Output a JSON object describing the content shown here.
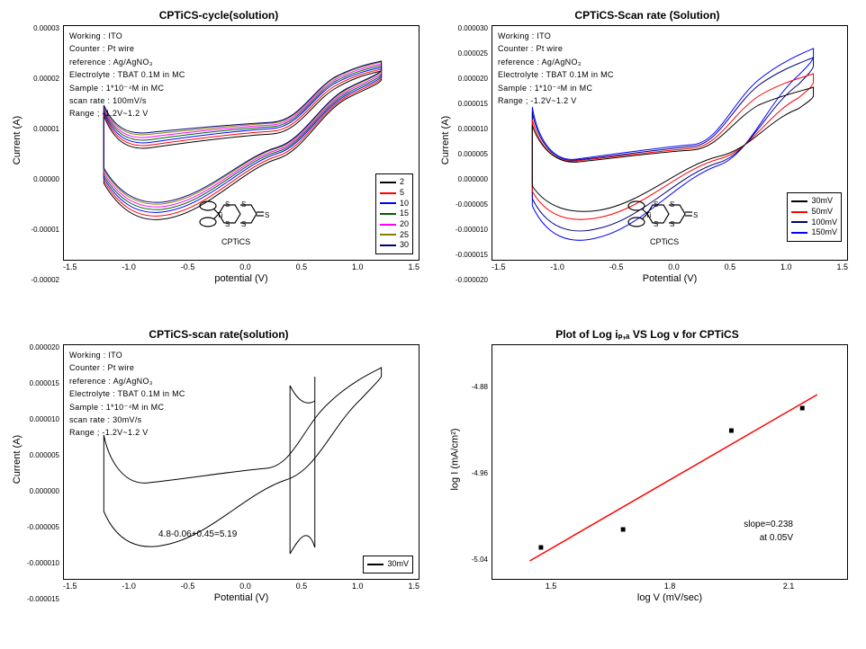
{
  "panelA": {
    "title": "CPTiCS-cycle(solution)",
    "type": "line",
    "ylabel": "Current (A)",
    "xlabel": "potential (V)",
    "xticks": [
      "-1.5",
      "-1.0",
      "-0.5",
      "0.0",
      "0.5",
      "1.0",
      "1.5"
    ],
    "yticks": [
      "-0.00002",
      "-0.00001",
      "0.00000",
      "0.00001",
      "0.00002",
      "0.00003"
    ],
    "info": [
      "Working : ITO",
      "Counter : Pt wire",
      "reference : Ag/AgNO₃",
      "Electrolyte : TBAT 0.1M in MC",
      "Sample : 1*10⁻⁴M in MC",
      "scan rate : 100mV/s",
      "Range ; -1.2V~1.2 V"
    ],
    "legend": [
      {
        "label": "2",
        "color": "#000000"
      },
      {
        "label": "5",
        "color": "#ff0000"
      },
      {
        "label": "10",
        "color": "#0000ff"
      },
      {
        "label": "15",
        "color": "#006000"
      },
      {
        "label": "20",
        "color": "#ff00ff"
      },
      {
        "label": "25",
        "color": "#808000"
      },
      {
        "label": "30",
        "color": "#000080"
      }
    ],
    "mol_label": "CPTiCS",
    "background_color": "#ffffff",
    "line_width": 1,
    "xlim": [
      -1.5,
      1.5
    ],
    "ylim": [
      -2e-05,
      3e-05
    ]
  },
  "panelB": {
    "title": "CPTiCS-Scan rate (Solution)",
    "type": "line",
    "ylabel": "Current (A)",
    "xlabel": "Potential (V)",
    "xticks": [
      "-1.5",
      "-1.0",
      "-0.5",
      "0.0",
      "0.5",
      "1.0",
      "1.5"
    ],
    "yticks": [
      "-0.000020",
      "-0.000015",
      "-0.000010",
      "-0.000005",
      "0.000000",
      "0.000005",
      "0.000010",
      "0.000015",
      "0.000020",
      "0.000025",
      "0.000030"
    ],
    "info": [
      "Working : ITO",
      "Counter : Pt wire",
      "reference : Ag/AgNO₃",
      "Electrolyte : TBAT 0.1M in MC",
      "Sample : 1*10⁻⁴M in MC",
      "Range ; -1.2V~1.2 V"
    ],
    "legend": [
      {
        "label": "30mV",
        "color": "#000000"
      },
      {
        "label": "50mV",
        "color": "#ff0000"
      },
      {
        "label": "100mV",
        "color": "#000080"
      },
      {
        "label": "150mV",
        "color": "#0000ff"
      }
    ],
    "mol_label": "CPTiCS",
    "background_color": "#ffffff",
    "line_width": 1,
    "xlim": [
      -1.5,
      1.5
    ],
    "ylim": [
      -2e-05,
      3e-05
    ]
  },
  "panelC": {
    "title": "CPTiCS-scan rate(solution)",
    "type": "line",
    "ylabel": "Current (A)",
    "xlabel": "Potential (V)",
    "xticks": [
      "-1.5",
      "-1.0",
      "-0.5",
      "0.0",
      "0.5",
      "1.0",
      "1.5"
    ],
    "yticks": [
      "-0.000015",
      "-0.000010",
      "-0.000005",
      "0.000000",
      "0.000005",
      "0.000010",
      "0.000015",
      "0.000020"
    ],
    "info": [
      "Working : ITO",
      "Counter : Pt wire",
      "reference : Ag/AgNO₃",
      "Electrolyte : TBAT 0.1M in MC",
      "Sample : 1*10⁻⁴M in MC",
      "scan rate : 30mV/s",
      "Range ; -1.2V~1.2 V"
    ],
    "legend": [
      {
        "label": "30mV",
        "color": "#000000"
      }
    ],
    "annot": "4.8-0.06+0.45=5.19",
    "background_color": "#ffffff",
    "line_width": 1,
    "xlim": [
      -1.5,
      1.5
    ],
    "ylim": [
      -1.5e-05,
      2e-05
    ]
  },
  "panelD": {
    "title": "Plot of Log iₚ,ₐ VS Log v for CPTiCS",
    "type": "scatter+line",
    "ylabel": "log I (mA/cm²)",
    "xlabel": "log V (mV/sec)",
    "xticks": [
      "1.5",
      "1.8",
      "2.1"
    ],
    "yticks": [
      "-5.04",
      "-4.96",
      "-4.88"
    ],
    "points": [
      {
        "x": 1.48,
        "y": -5.065
      },
      {
        "x": 1.7,
        "y": -5.045
      },
      {
        "x": 1.99,
        "y": -4.935
      },
      {
        "x": 2.18,
        "y": -4.91
      }
    ],
    "fit_line": {
      "x1": 1.45,
      "y1": -5.08,
      "x2": 2.22,
      "y2": -4.895,
      "color": "#ff0000"
    },
    "marker_color": "#000000",
    "marker_size": 5,
    "annot1": "slope=0.238",
    "annot2": "at 0.05V",
    "background_color": "#ffffff",
    "xlim": [
      1.35,
      2.3
    ],
    "ylim": [
      -5.1,
      -4.84
    ]
  }
}
